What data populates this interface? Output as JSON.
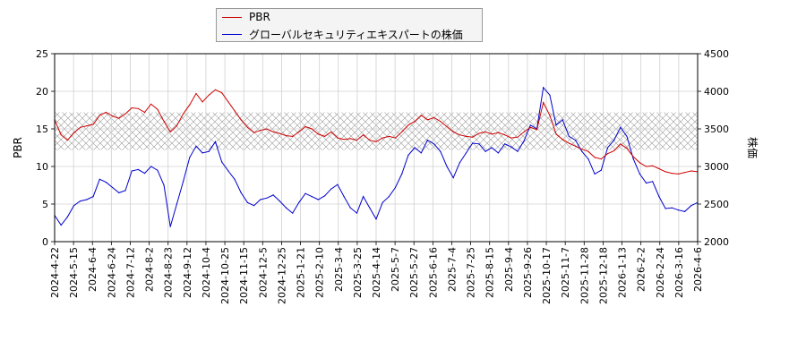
{
  "chart_data": {
    "type": "line",
    "legend": {
      "position": "top-left",
      "entries": [
        "PBR",
        "グローバルセキュリティエキスパートの株価"
      ]
    },
    "xlabel": "",
    "ylabel_left": "PBR",
    "ylabel_right": "株価",
    "ylim_left": [
      0,
      25
    ],
    "ylim_right": [
      2000,
      4500
    ],
    "yticks_left": [
      "0",
      "5",
      "10",
      "15",
      "20",
      "25"
    ],
    "yticks_right": [
      "2000",
      "2500",
      "3000",
      "3500",
      "4000",
      "4500"
    ],
    "band_left": [
      12.2,
      17.2
    ],
    "grid": true,
    "colors": {
      "pbr": "#cc0000",
      "price": "#0000cc",
      "band": "#999999"
    },
    "x_ticks": [
      "2024-4-22",
      "2024-5-15",
      "2024-6-4",
      "2024-6-24",
      "2024-7-12",
      "2024-8-2",
      "2024-8-23",
      "2024-9-12",
      "2024-10-4",
      "2024-10-25",
      "2024-11-15",
      "2024-12-5",
      "2024-12-25",
      "2025-1-21",
      "2025-2-10",
      "2025-3-4",
      "2025-3-25",
      "2025-4-14",
      "2025-5-7",
      "2025-5-27",
      "2025-6-16",
      "2025-7-4",
      "2025-7-25",
      "2025-8-15",
      "2025-9-4",
      "2025-9-26",
      "2025-10-17",
      "2025-11-7",
      "2025-11-28",
      "2025-12-18",
      "2026-1-13",
      "2026-2-2",
      "2026-2-24",
      "2026-3-16",
      "2026-4-6"
    ],
    "series": [
      {
        "name": "PBR",
        "axis": "left",
        "values": [
          16.2,
          14.2,
          13.5,
          14.5,
          15.2,
          15.4,
          15.6,
          16.8,
          17.2,
          16.7,
          16.4,
          17.0,
          17.8,
          17.7,
          17.2,
          18.3,
          17.6,
          16.0,
          14.6,
          15.4,
          17.0,
          18.2,
          19.7,
          18.6,
          19.5,
          20.2,
          19.8,
          18.6,
          17.4,
          16.2,
          15.2,
          14.5,
          14.8,
          15.0,
          14.6,
          14.4,
          14.1,
          14.0,
          14.6,
          15.3,
          15.0,
          14.3,
          14.0,
          14.6,
          13.8,
          13.6,
          13.7,
          13.5,
          14.2,
          13.5,
          13.3,
          13.8,
          14.0,
          13.8,
          14.6,
          15.5,
          16.0,
          16.8,
          16.2,
          16.5,
          16.0,
          15.3,
          14.6,
          14.2,
          14.0,
          13.9,
          14.4,
          14.6,
          14.3,
          14.5,
          14.2,
          13.8,
          13.9,
          14.6,
          15.2,
          14.9,
          18.5,
          16.8,
          14.3,
          13.6,
          13.1,
          12.7,
          12.3,
          12.0,
          11.2,
          11.0,
          11.7,
          12.1,
          13.0,
          12.4,
          11.3,
          10.5,
          10.0,
          10.1,
          9.7,
          9.3,
          9.1,
          9.0,
          9.2,
          9.4,
          9.3
        ]
      },
      {
        "name": "グローバルセキュリティエキスパートの株価",
        "axis": "right",
        "values": [
          2350,
          2220,
          2330,
          2480,
          2540,
          2560,
          2600,
          2830,
          2790,
          2720,
          2650,
          2680,
          2940,
          2960,
          2910,
          3000,
          2950,
          2750,
          2200,
          2500,
          2800,
          3120,
          3270,
          3180,
          3200,
          3330,
          3060,
          2940,
          2830,
          2650,
          2520,
          2480,
          2560,
          2580,
          2620,
          2540,
          2450,
          2380,
          2520,
          2640,
          2600,
          2560,
          2610,
          2700,
          2760,
          2600,
          2450,
          2380,
          2600,
          2450,
          2300,
          2520,
          2600,
          2720,
          2900,
          3150,
          3250,
          3180,
          3350,
          3300,
          3200,
          3000,
          2850,
          3050,
          3180,
          3310,
          3300,
          3200,
          3250,
          3180,
          3300,
          3260,
          3200,
          3340,
          3550,
          3500,
          4050,
          3950,
          3550,
          3620,
          3400,
          3350,
          3200,
          3100,
          2900,
          2950,
          3250,
          3350,
          3520,
          3400,
          3100,
          2900,
          2780,
          2800,
          2600,
          2440,
          2450,
          2420,
          2400,
          2480,
          2520
        ]
      }
    ]
  }
}
